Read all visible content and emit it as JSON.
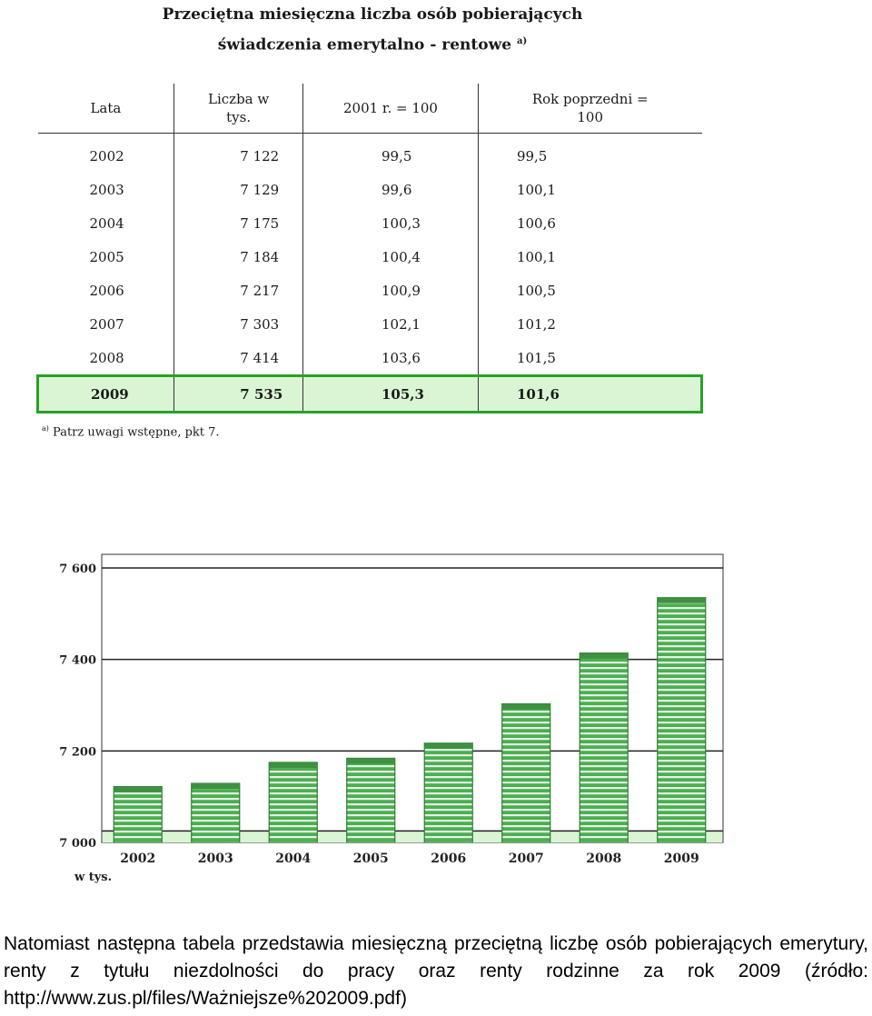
{
  "table": {
    "title_line1": "Przeciętna miesięczna liczba osób pobierających",
    "title_line2": "świadczenia emerytalno - rentowe",
    "title_sup": "a)",
    "headers": [
      "Lata",
      "Liczba w tys.",
      "2001 r. = 100",
      "Rok poprzedni = 100"
    ],
    "rows": [
      [
        "2002",
        "7 122",
        "99,5",
        "99,5"
      ],
      [
        "2003",
        "7 129",
        "99,6",
        "100,1"
      ],
      [
        "2004",
        "7 175",
        "100,3",
        "100,6"
      ],
      [
        "2005",
        "7 184",
        "100,4",
        "100,1"
      ],
      [
        "2006",
        "7 217",
        "100,9",
        "100,5"
      ],
      [
        "2007",
        "7 303",
        "102,1",
        "101,2"
      ],
      [
        "2008",
        "7 414",
        "103,6",
        "101,5"
      ],
      [
        "2009",
        "7 535",
        "105,3",
        "101,6"
      ]
    ],
    "highlight_row": 7,
    "highlight_color": "#d9f5d3",
    "highlight_border": "#27a227",
    "footnote_sup": "a)",
    "footnote": "Patrz uwagi wstępne, pkt 7."
  },
  "chart_data": {
    "type": "bar",
    "categories": [
      "2002",
      "2003",
      "2004",
      "2005",
      "2006",
      "2007",
      "2008",
      "2009"
    ],
    "values": [
      7122,
      7129,
      7175,
      7184,
      7217,
      7303,
      7414,
      7535
    ],
    "ylim": [
      7000,
      7600
    ],
    "yticks": [
      7000,
      7200,
      7400,
      7600
    ],
    "ytick_labels": [
      "7 000",
      "7 200",
      "7 400",
      "7 600"
    ],
    "xlabel": "w tys.",
    "grid": "horizontal",
    "bar_color": "#4caf50",
    "bar_stripe_color": "#ffffff"
  },
  "paragraph": "Natomiast następna tabela przedstawia miesięczną przeciętną liczbę osób pobierających emerytury, renty z tytułu niezdolności do pracy oraz renty rodzinne za rok 2009 (źródło: http://www.zus.pl/files/Ważniejsze%202009.pdf)"
}
